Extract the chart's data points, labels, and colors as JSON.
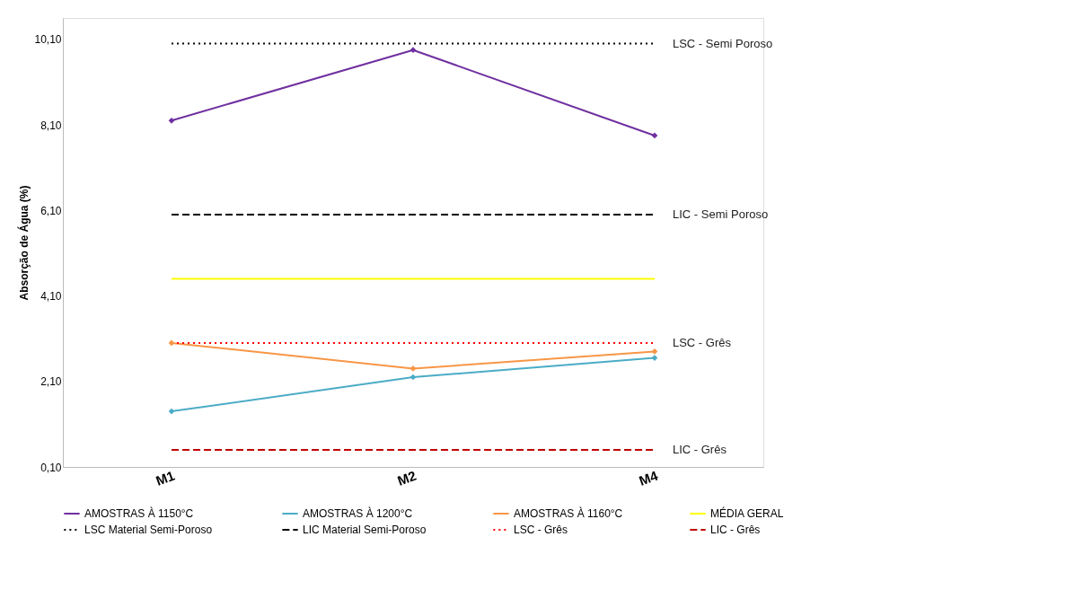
{
  "chart_data": {
    "type": "line",
    "ylabel": "Absorção de Água (%)",
    "categories": [
      "M1",
      "M2",
      "M4"
    ],
    "series": [
      {
        "name": "AMOSTRAS À 1150°C",
        "color": "#7030a0",
        "values": [
          8.2,
          9.85,
          7.85
        ],
        "marker": "diamond",
        "line_style": "solid"
      },
      {
        "name": "AMOSTRAS À 1200°C",
        "color": "#4bacc6",
        "values": [
          1.4,
          2.2,
          2.65
        ],
        "marker": "diamond",
        "line_style": "solid"
      },
      {
        "name": "AMOSTRAS À 1160°C",
        "color": "#f79646",
        "values": [
          3.0,
          2.4,
          2.8
        ],
        "marker": "diamond",
        "line_style": "solid"
      },
      {
        "name": "MÉDIA GERAL",
        "color": "#ffff00",
        "values": [
          4.5,
          4.5,
          4.5
        ],
        "marker": "none",
        "line_style": "solid"
      },
      {
        "name": "LSC  Material Semi-Poroso",
        "color": "#000000",
        "values": [
          10.0,
          10.0,
          10.0
        ],
        "marker": "none",
        "line_style": "dotted"
      },
      {
        "name": "LIC Material Semi-Poroso",
        "color": "#000000",
        "values": [
          6.0,
          6.0,
          6.0
        ],
        "marker": "none",
        "line_style": "dashed"
      },
      {
        "name": "LSC - Grês",
        "color": "#ff0000",
        "values": [
          3.0,
          3.0,
          3.0
        ],
        "marker": "none",
        "line_style": "dotted"
      },
      {
        "name": "LIC - Grês",
        "color": "#c00000",
        "values": [
          0.5,
          0.5,
          0.5
        ],
        "marker": "none",
        "line_style": "dashed"
      }
    ],
    "annotations": [
      {
        "text": "LSC   - Semi Poroso",
        "x": "M4",
        "y": 10.0
      },
      {
        "text": "LIC   - Semi Poroso",
        "x": "M4",
        "y": 6.0
      },
      {
        "text": "LSC  - Grês",
        "x": "M4",
        "y": 3.0
      },
      {
        "text": "LIC  - Grês",
        "x": "M4",
        "y": 0.5
      }
    ],
    "ylim": [
      0.1,
      10.6
    ],
    "yticks": [
      {
        "value": 0.1,
        "label": "0,10"
      },
      {
        "value": 2.1,
        "label": "2,10"
      },
      {
        "value": 4.1,
        "label": "4,10"
      },
      {
        "value": 6.1,
        "label": "6,10"
      },
      {
        "value": 8.1,
        "label": "8,10"
      },
      {
        "value": 10.1,
        "label": "10,10"
      }
    ],
    "grid": false,
    "legend": "bottom"
  }
}
